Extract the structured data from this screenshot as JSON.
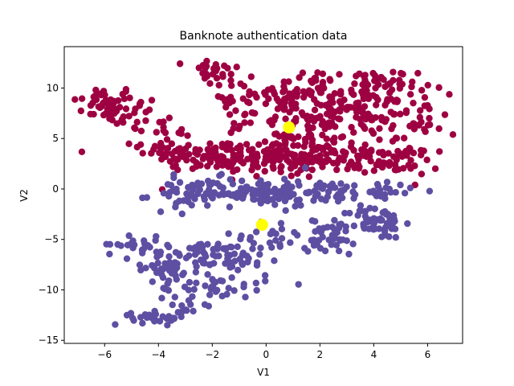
{
  "chart_data": {
    "type": "scatter",
    "title": "Banknote authentication data",
    "xlabel": "V1",
    "ylabel": "V2",
    "xlim": [
      -7.5,
      7.3
    ],
    "ylim": [
      -15.3,
      14.1
    ],
    "xticks": [
      -6,
      -4,
      -2,
      0,
      2,
      4,
      6
    ],
    "yticks": [
      -15,
      -10,
      -5,
      0,
      5,
      10
    ],
    "grid": false,
    "colors": {
      "class_0": "#9e0142",
      "class_1": "#5e4fa2",
      "centroid": "#ffff00"
    },
    "series": [
      {
        "name": "class_0",
        "clusters": [
          {
            "cx": -6.0,
            "cy": 8.5,
            "sx": 0.6,
            "sy": 0.9,
            "n": 40
          },
          {
            "cx": -5.0,
            "cy": 7.5,
            "sx": 0.5,
            "sy": 0.9,
            "n": 25
          },
          {
            "cx": -4.0,
            "cy": 5.0,
            "sx": 0.6,
            "sy": 1.3,
            "n": 30
          },
          {
            "cx": -2.0,
            "cy": 3.3,
            "sx": 1.2,
            "sy": 0.8,
            "n": 90
          },
          {
            "cx": 0.3,
            "cy": 3.0,
            "sx": 1.0,
            "sy": 0.9,
            "n": 90
          },
          {
            "cx": 2.5,
            "cy": 3.3,
            "sx": 1.2,
            "sy": 0.9,
            "n": 90
          },
          {
            "cx": 4.8,
            "cy": 2.7,
            "sx": 0.8,
            "sy": 0.8,
            "n": 40
          },
          {
            "cx": 1.5,
            "cy": 6.5,
            "sx": 1.2,
            "sy": 1.3,
            "n": 90
          },
          {
            "cx": 3.8,
            "cy": 7.5,
            "sx": 1.0,
            "sy": 1.4,
            "n": 80
          },
          {
            "cx": 1.2,
            "cy": 9.5,
            "sx": 0.8,
            "sy": 1.0,
            "n": 50
          },
          {
            "cx": 3.8,
            "cy": 10.2,
            "sx": 0.9,
            "sy": 0.8,
            "n": 60
          },
          {
            "cx": -2.0,
            "cy": 11.5,
            "sx": 0.5,
            "sy": 0.8,
            "n": 25
          },
          {
            "cx": -1.0,
            "cy": 8.5,
            "sx": 0.6,
            "sy": 1.2,
            "n": 25
          },
          {
            "cx": 5.8,
            "cy": 7.0,
            "sx": 0.6,
            "sy": 1.8,
            "n": 20
          }
        ]
      },
      {
        "name": "class_1",
        "clusters": [
          {
            "cx": -2.5,
            "cy": -0.5,
            "sx": 0.9,
            "sy": 0.8,
            "n": 60
          },
          {
            "cx": -0.2,
            "cy": -0.3,
            "sx": 1.0,
            "sy": 0.7,
            "n": 80
          },
          {
            "cx": 2.0,
            "cy": -0.3,
            "sx": 1.0,
            "sy": 0.6,
            "n": 40
          },
          {
            "cx": 4.3,
            "cy": -0.1,
            "sx": 0.8,
            "sy": 0.5,
            "n": 25
          },
          {
            "cx": 4.1,
            "cy": -3.3,
            "sx": 0.5,
            "sy": 0.8,
            "n": 60
          },
          {
            "cx": 2.2,
            "cy": -5.0,
            "sx": 0.8,
            "sy": 0.9,
            "n": 40
          },
          {
            "cx": 0.3,
            "cy": -4.5,
            "sx": 0.5,
            "sy": 0.8,
            "n": 15
          },
          {
            "cx": -2.5,
            "cy": -6.8,
            "sx": 1.0,
            "sy": 0.8,
            "n": 60
          },
          {
            "cx": -1.0,
            "cy": -6.0,
            "sx": 0.8,
            "sy": 1.0,
            "n": 30
          },
          {
            "cx": -4.8,
            "cy": -5.5,
            "sx": 0.5,
            "sy": 0.4,
            "n": 20
          },
          {
            "cx": -3.8,
            "cy": -8.0,
            "sx": 0.5,
            "sy": 0.6,
            "n": 25
          },
          {
            "cx": -2.0,
            "cy": -9.8,
            "sx": 1.0,
            "sy": 0.8,
            "n": 40
          },
          {
            "cx": -4.0,
            "cy": -12.8,
            "sx": 0.5,
            "sy": 0.3,
            "n": 30
          },
          {
            "cx": -3.0,
            "cy": -11.5,
            "sx": 0.3,
            "sy": 0.6,
            "n": 10
          }
        ]
      }
    ],
    "centroids": [
      {
        "x": 0.85,
        "y": 6.1
      },
      {
        "x": -0.15,
        "y": -3.55
      }
    ]
  }
}
